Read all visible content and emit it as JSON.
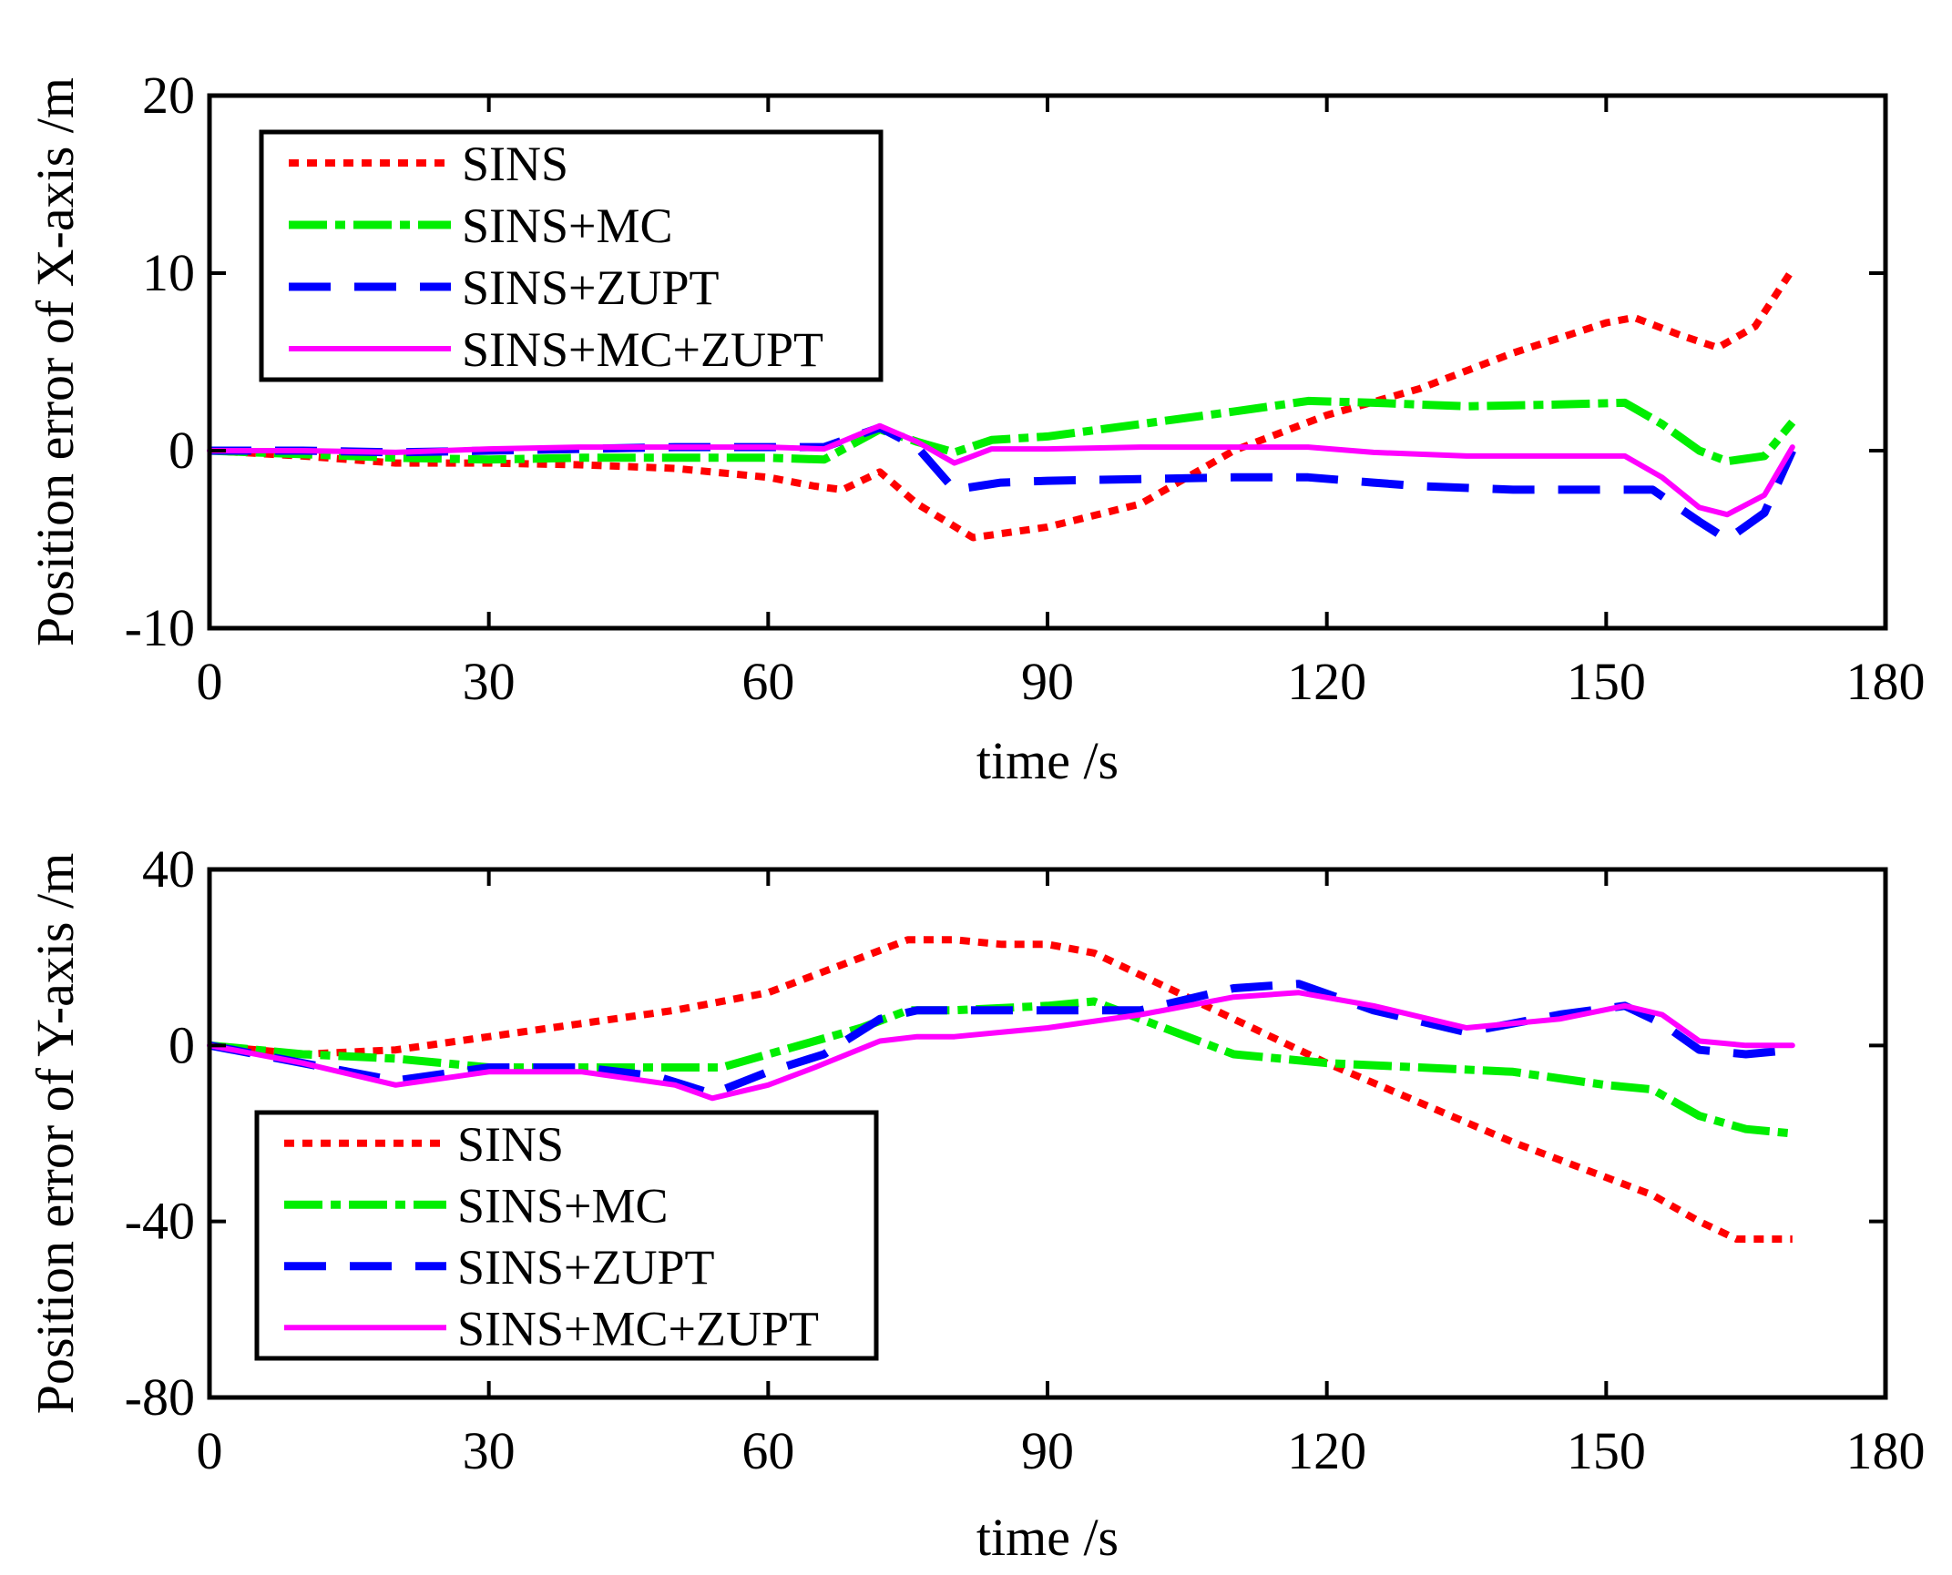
{
  "chart_data": [
    {
      "type": "line",
      "xlabel": "time /s",
      "ylabel": "Position error of X-axis /m",
      "xlim": [
        0,
        180
      ],
      "ylim": [
        -10,
        20
      ],
      "xticks": [
        0,
        30,
        60,
        90,
        120,
        150,
        180
      ],
      "yticks": [
        -10,
        0,
        10,
        20
      ],
      "legend_position": "top-left",
      "series": [
        {
          "name": "SINS",
          "color": "#ff0000",
          "style": "dotted",
          "x": [
            0,
            10,
            20,
            30,
            40,
            50,
            60,
            65,
            68,
            72,
            76,
            82,
            90,
            100,
            110,
            120,
            130,
            140,
            150,
            153,
            158,
            162,
            166,
            170
          ],
          "y": [
            0,
            -0.3,
            -0.7,
            -0.7,
            -0.8,
            -1.0,
            -1.5,
            -2.0,
            -2.2,
            -1.2,
            -3.0,
            -4.9,
            -4.3,
            -3.0,
            0.0,
            2.0,
            3.5,
            5.5,
            7.2,
            7.5,
            6.5,
            5.8,
            7.0,
            10.2
          ]
        },
        {
          "name": "SINS+MC",
          "color": "#00ee00",
          "style": "dashdot",
          "x": [
            0,
            10,
            20,
            30,
            40,
            50,
            60,
            66,
            72,
            76,
            80,
            84,
            90,
            100,
            110,
            118,
            125,
            135,
            145,
            152,
            156,
            160,
            163,
            167,
            170
          ],
          "y": [
            0,
            -0.2,
            -0.4,
            -0.5,
            -0.4,
            -0.4,
            -0.4,
            -0.5,
            1.2,
            0.5,
            -0.1,
            0.6,
            0.8,
            1.5,
            2.2,
            2.8,
            2.7,
            2.5,
            2.6,
            2.7,
            1.5,
            0.0,
            -0.6,
            -0.3,
            1.6
          ]
        },
        {
          "name": "SINS+ZUPT",
          "color": "#0000ff",
          "style": "dashed",
          "x": [
            0,
            10,
            20,
            30,
            40,
            50,
            60,
            66,
            72,
            76,
            80,
            85,
            90,
            100,
            110,
            118,
            125,
            130,
            140,
            150,
            155,
            160,
            163,
            167,
            170
          ],
          "y": [
            0,
            0,
            -0.1,
            0,
            0.1,
            0.2,
            0.2,
            0.2,
            1.3,
            0.2,
            -2.2,
            -1.8,
            -1.7,
            -1.6,
            -1.5,
            -1.5,
            -1.8,
            -2.0,
            -2.2,
            -2.2,
            -2.2,
            -4.0,
            -5.0,
            -3.5,
            0.0
          ]
        },
        {
          "name": "SINS+MC+ZUPT",
          "color": "#ff00ff",
          "style": "solid",
          "x": [
            0,
            10,
            20,
            30,
            40,
            50,
            60,
            66,
            72,
            76,
            80,
            84,
            90,
            100,
            110,
            118,
            125,
            135,
            145,
            152,
            156,
            160,
            163,
            167,
            170
          ],
          "y": [
            0,
            0,
            -0.1,
            0.1,
            0.2,
            0.2,
            0.2,
            0.1,
            1.4,
            0.5,
            -0.7,
            0.1,
            0.1,
            0.2,
            0.2,
            0.2,
            -0.1,
            -0.3,
            -0.3,
            -0.3,
            -1.5,
            -3.2,
            -3.6,
            -2.5,
            0.2
          ]
        }
      ]
    },
    {
      "type": "line",
      "xlabel": "time /s",
      "ylabel": "Position error of Y-axis /m",
      "xlim": [
        0,
        180
      ],
      "ylim": [
        -80,
        40
      ],
      "xticks": [
        0,
        30,
        60,
        90,
        120,
        150,
        180
      ],
      "yticks": [
        -80,
        -40,
        0,
        40
      ],
      "legend_position": "bottom-left",
      "series": [
        {
          "name": "SINS",
          "color": "#ff0000",
          "style": "dotted",
          "x": [
            0,
            10,
            20,
            30,
            40,
            50,
            60,
            70,
            75,
            80,
            85,
            90,
            95,
            100,
            110,
            120,
            130,
            140,
            150,
            155,
            160,
            164,
            170
          ],
          "y": [
            0,
            -2,
            -1,
            2,
            5,
            8,
            12,
            20,
            24,
            24,
            23,
            23,
            21,
            16,
            6,
            -4,
            -13,
            -22,
            -30,
            -34,
            -40,
            -44,
            -44
          ]
        },
        {
          "name": "SINS+MC",
          "color": "#00ee00",
          "style": "dashdot",
          "x": [
            0,
            10,
            20,
            30,
            40,
            50,
            55,
            60,
            70,
            75,
            80,
            90,
            95,
            100,
            110,
            120,
            130,
            140,
            150,
            155,
            160,
            165,
            170
          ],
          "y": [
            0,
            -2,
            -3,
            -5,
            -5,
            -5,
            -5,
            -2,
            4,
            8,
            8,
            9,
            10,
            6,
            -2,
            -4,
            -5,
            -6,
            -9,
            -10,
            -16,
            -19,
            -20
          ]
        },
        {
          "name": "SINS+ZUPT",
          "color": "#0000ff",
          "style": "dashed",
          "x": [
            0,
            10,
            20,
            30,
            40,
            48,
            54,
            60,
            66,
            72,
            76,
            80,
            90,
            100,
            110,
            117,
            125,
            135,
            145,
            152,
            156,
            160,
            165,
            170
          ],
          "y": [
            0,
            -4,
            -8,
            -5,
            -5,
            -7,
            -11,
            -6,
            -2,
            6,
            8,
            8,
            8,
            8,
            13,
            14,
            8,
            3,
            7,
            9,
            5,
            -1,
            -2,
            -1
          ]
        },
        {
          "name": "SINS+MC+ZUPT",
          "color": "#ff00ff",
          "style": "solid",
          "x": [
            0,
            10,
            20,
            30,
            40,
            50,
            54,
            60,
            65,
            72,
            76,
            80,
            90,
            100,
            110,
            117,
            125,
            135,
            145,
            152,
            156,
            160,
            165,
            170
          ],
          "y": [
            0,
            -4,
            -9,
            -6,
            -6,
            -9,
            -12,
            -9,
            -5,
            1,
            2,
            2,
            4,
            7,
            11,
            12,
            9,
            4,
            6,
            9,
            7,
            1,
            0,
            0
          ]
        }
      ]
    }
  ]
}
